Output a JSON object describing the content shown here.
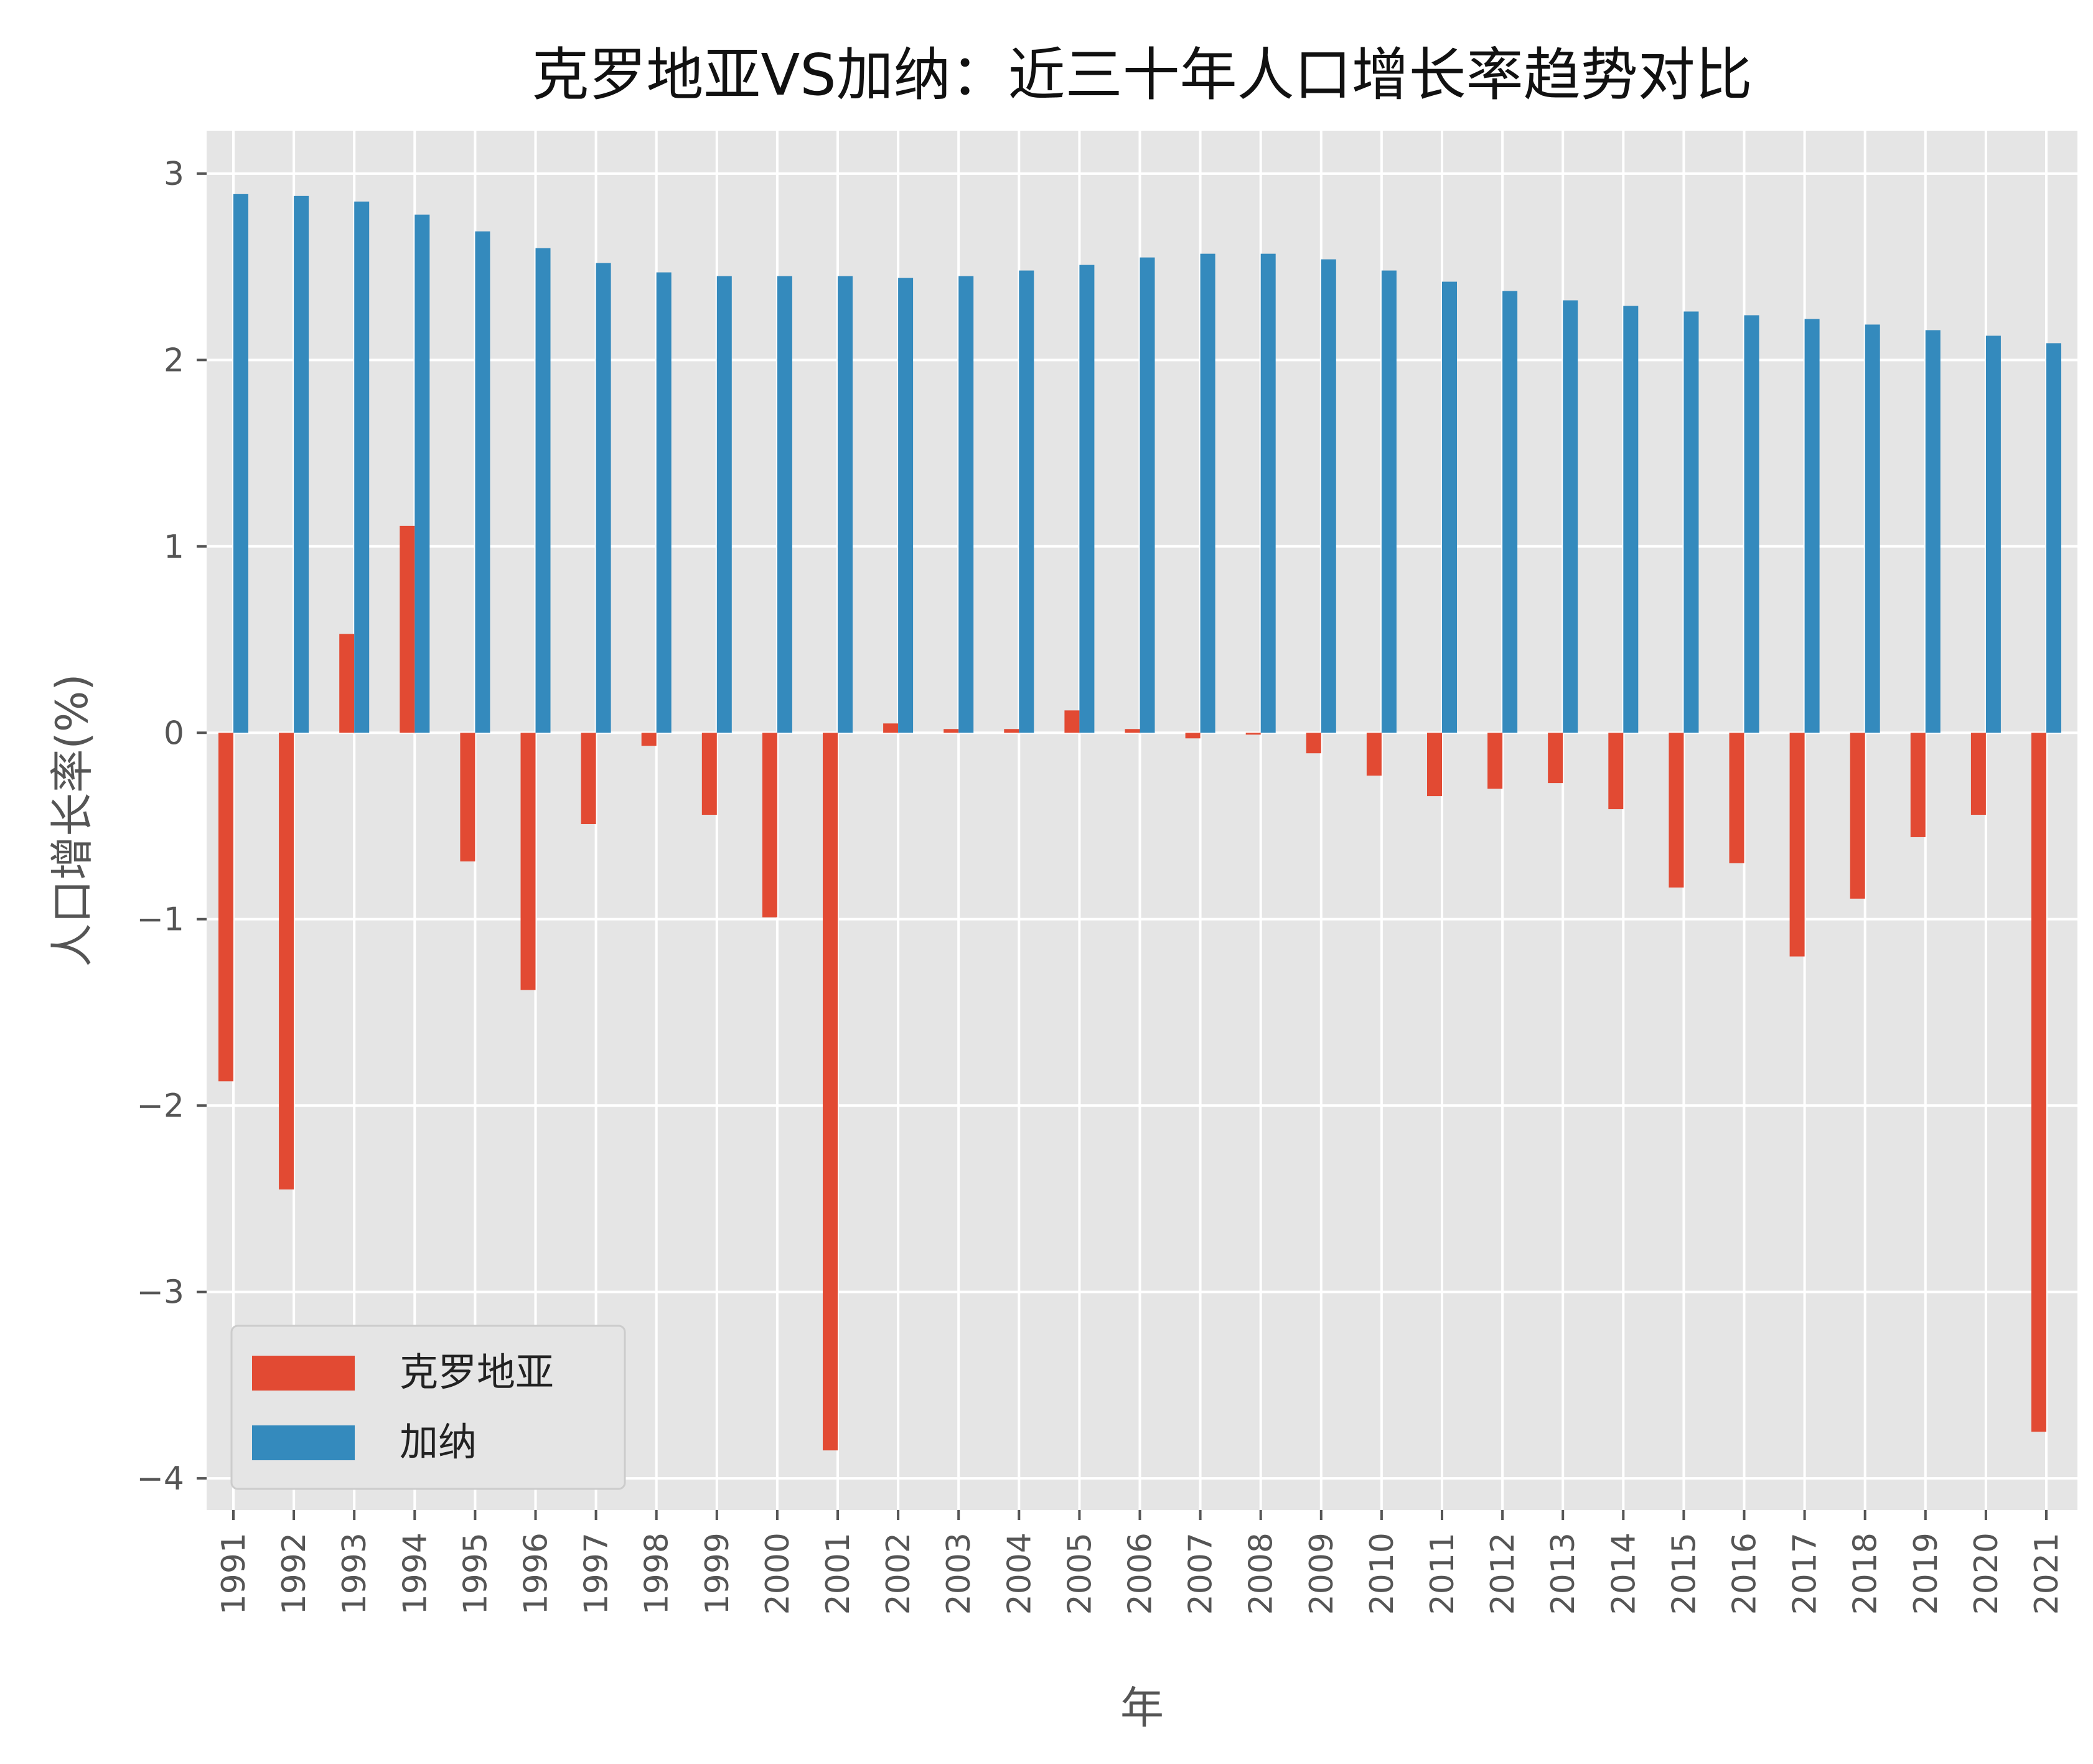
{
  "chart_data": {
    "type": "bar",
    "title": "克罗地亚VS加纳：近三十年人口增长率趋势对比",
    "xlabel": "年",
    "ylabel": "人口增长率(%)",
    "ylim": [
      -4.17,
      3.23
    ],
    "yticks": [
      3,
      2,
      1,
      0,
      -1,
      -2,
      -3,
      -4
    ],
    "ytick_labels": [
      "3",
      "2",
      "1",
      "0",
      "−1",
      "−2",
      "−3",
      "−4"
    ],
    "grid": true,
    "legend_position": "lower-left",
    "categories": [
      "1991",
      "1992",
      "1993",
      "1994",
      "1995",
      "1996",
      "1997",
      "1998",
      "1999",
      "2000",
      "2001",
      "2002",
      "2003",
      "2004",
      "2005",
      "2006",
      "2007",
      "2008",
      "2009",
      "2010",
      "2011",
      "2012",
      "2013",
      "2014",
      "2015",
      "2016",
      "2017",
      "2018",
      "2019",
      "2020",
      "2021"
    ],
    "series": [
      {
        "name": "克罗地亚",
        "color": "#E24A33",
        "values": [
          -1.87,
          -2.45,
          0.53,
          1.11,
          -0.69,
          -1.38,
          -0.49,
          -0.07,
          -0.44,
          -0.99,
          -3.85,
          0.05,
          0.02,
          0.02,
          0.12,
          0.02,
          -0.03,
          -0.01,
          -0.11,
          -0.23,
          -0.34,
          -0.3,
          -0.27,
          -0.41,
          -0.83,
          -0.7,
          -1.2,
          -0.89,
          -0.56,
          -0.44,
          -3.75
        ]
      },
      {
        "name": "加纳",
        "color": "#348ABD",
        "values": [
          2.89,
          2.88,
          2.85,
          2.78,
          2.69,
          2.6,
          2.52,
          2.47,
          2.45,
          2.45,
          2.45,
          2.44,
          2.45,
          2.48,
          2.51,
          2.55,
          2.57,
          2.57,
          2.54,
          2.48,
          2.42,
          2.37,
          2.32,
          2.29,
          2.26,
          2.24,
          2.22,
          2.19,
          2.16,
          2.13,
          2.09
        ]
      }
    ]
  },
  "style": {
    "plot_background": "#E5E5E5",
    "grid_color": "#FFFFFF",
    "text_color": "#555555",
    "title_color": "#111111"
  }
}
